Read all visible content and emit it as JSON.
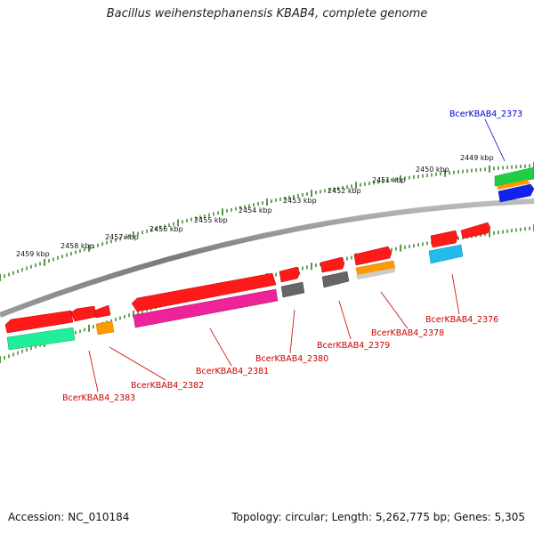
{
  "title": "Bacillus weihenstephanensis KBAB4, complete genome",
  "footer": {
    "accession": "Accession: NC_010184",
    "summary": "Topology: circular; Length: 5,262,775 bp; Genes: 5,305"
  },
  "ticks": {
    "labels": [
      "2449 kbp",
      "2450 kbp",
      "2451 kbp",
      "2452 kbp",
      "2453 kbp",
      "2454 kbp",
      "2455 kbp",
      "2456 kbp",
      "2457 kbp",
      "2458 kbp",
      "2459 kbp"
    ]
  },
  "gene_labels": [
    {
      "id": "g2373",
      "text": "BcerKBAB4_2373",
      "color": "#0000cc"
    },
    {
      "id": "g2376",
      "text": "BcerKBAB4_2376",
      "color": "#cc0000"
    },
    {
      "id": "g2378",
      "text": "BcerKBAB4_2378",
      "color": "#cc0000"
    },
    {
      "id": "g2379",
      "text": "BcerKBAB4_2379",
      "color": "#cc0000"
    },
    {
      "id": "g2380",
      "text": "BcerKBAB4_2380",
      "color": "#cc0000"
    },
    {
      "id": "g2381",
      "text": "BcerKBAB4_2381",
      "color": "#cc0000"
    },
    {
      "id": "g2382",
      "text": "BcerKBAB4_2382",
      "color": "#cc0000"
    },
    {
      "id": "g2383",
      "text": "BcerKBAB4_2383",
      "color": "#cc0000"
    }
  ],
  "colors": {
    "backbone": "#808080",
    "tick": "#2e7d1a",
    "gene_red": "#ff1a1a",
    "gene_green": "#22cc66",
    "gene_magenta": "#ee2299",
    "gene_orange": "#ff9900",
    "gene_gray": "#666666",
    "gene_cyan": "#22bbee",
    "gene_blue": "#1122ee"
  }
}
